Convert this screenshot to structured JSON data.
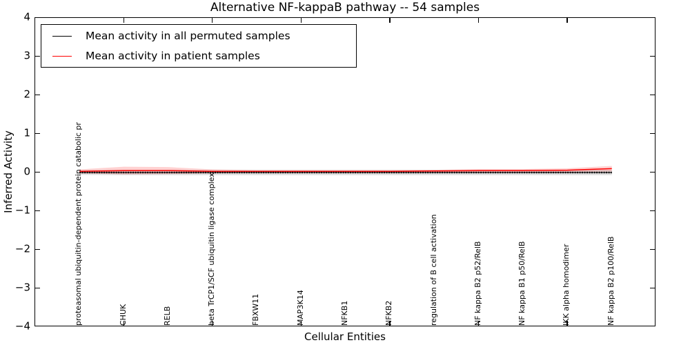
{
  "title": "Alternative NF-kappaB pathway -- 54 samples",
  "legend": {
    "entries": [
      {
        "label": "Mean activity in all permuted samples",
        "color": "#000000"
      },
      {
        "label": "Mean activity in patient samples",
        "color": "#ff0000"
      }
    ],
    "position": "upper left"
  },
  "chart_data": {
    "type": "line",
    "title": "Alternative NF-kappaB pathway -- 54 samples",
    "xlabel": "Cellular Entities",
    "ylabel": "Inferred Activity",
    "ylim": [
      -4,
      4
    ],
    "xlim": [
      0,
      14
    ],
    "yticks": [
      4,
      3,
      2,
      1,
      0,
      -1,
      -2,
      -3,
      -4
    ],
    "xticks": [
      2,
      4,
      6,
      8,
      10,
      12
    ],
    "grid": false,
    "legend_position": "upper left",
    "categories": [
      "proteasomal ubiquitin-dependent protein catabolic pr",
      "CHUK",
      "RELB",
      "beta TrCP1/SCF ubiquitin ligase complex",
      "FBXW11",
      "MAP3K14",
      "NFKB1",
      "NFKB2",
      "regulation of B cell activation",
      "NF kappa B2 p52/RelB",
      "NF kappa B1 p50/RelB",
      "IKK alpha homodimer",
      "NF kappa B2 p100/RelB"
    ],
    "x": [
      1,
      2,
      3,
      4,
      5,
      6,
      7,
      8,
      9,
      10,
      11,
      12,
      13
    ],
    "series": [
      {
        "name": "Mean activity in all permuted samples",
        "color": "#000000",
        "band_color": "rgba(0,0,0,0.12)",
        "values": [
          0,
          0,
          0,
          0,
          0,
          0,
          0,
          0,
          0,
          0,
          0,
          0,
          0
        ],
        "band": [
          0.06,
          0.07,
          0.07,
          0.07,
          0.07,
          0.07,
          0.07,
          0.07,
          0.07,
          0.07,
          0.07,
          0.07,
          0.07
        ]
      },
      {
        "name": "Mean activity in patient samples",
        "color": "#ff0000",
        "band_color": "rgba(255,0,0,0.18)",
        "values": [
          0.03,
          0.05,
          0.05,
          0.03,
          0.03,
          0.03,
          0.03,
          0.03,
          0.04,
          0.05,
          0.05,
          0.06,
          0.1
        ],
        "band": [
          0.05,
          0.1,
          0.09,
          0.05,
          0.03,
          0.03,
          0.03,
          0.03,
          0.03,
          0.04,
          0.04,
          0.05,
          0.07
        ]
      }
    ]
  }
}
